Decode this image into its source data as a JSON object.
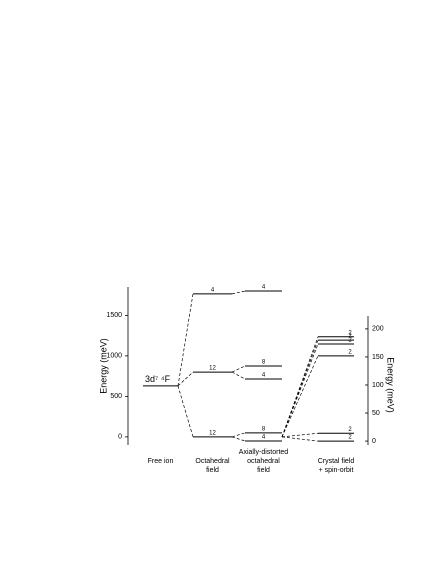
{
  "chart_data": {
    "type": "level-diagram",
    "ylabel": "Energy (meV)",
    "y2label": "Energy (meV)",
    "ylim": [
      -100,
      1850
    ],
    "yticks": [
      0,
      500,
      1000,
      1500
    ],
    "y2lim": [
      -7,
      223
    ],
    "y2ticks": [
      0,
      50,
      100,
      150,
      200
    ],
    "color": "#000000",
    "columns": [
      {
        "label": [
          "Free ion"
        ],
        "levels": [
          {
            "energy": 630,
            "label": "3d⁷ ⁴F"
          }
        ]
      },
      {
        "label": [
          "Octahedral",
          "field"
        ],
        "levels": [
          {
            "energy": 1765,
            "degeneracy": 4
          },
          {
            "energy": 800,
            "degeneracy": 12
          },
          {
            "energy": 0,
            "degeneracy": 12
          }
        ]
      },
      {
        "label": [
          "Axially-distorted",
          "octahedral",
          "field"
        ],
        "levels": [
          {
            "energy": 1800,
            "degeneracy": 4
          },
          {
            "energy": 875,
            "degeneracy": 8
          },
          {
            "energy": 715,
            "degeneracy": 4
          },
          {
            "energy": 50,
            "degeneracy": 8
          },
          {
            "energy": -50,
            "degeneracy": 4
          }
        ]
      },
      {
        "label": [
          "Crystal field",
          "+ spin-orbit"
        ],
        "axis": "y2",
        "levels": [
          {
            "energy": 186,
            "degeneracy": 2
          },
          {
            "energy": 180,
            "degeneracy": 2
          },
          {
            "energy": 173,
            "degeneracy": 2
          },
          {
            "energy": 152,
            "degeneracy": 2
          },
          {
            "energy": 14,
            "degeneracy": 2
          },
          {
            "energy": 0,
            "degeneracy": 2
          }
        ]
      }
    ]
  }
}
